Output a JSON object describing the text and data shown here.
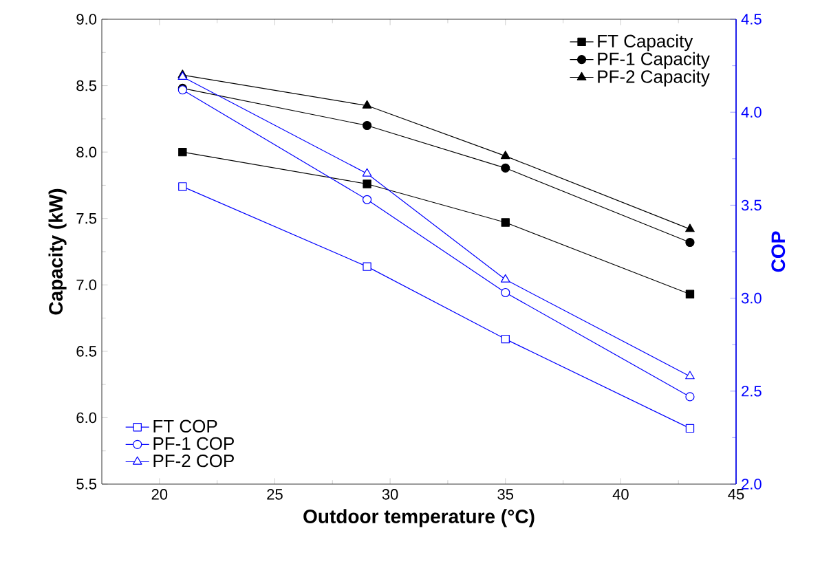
{
  "chart_data": {
    "type": "line",
    "xlabel": "Outdoor  temperature (°C)",
    "ylabel": "Capacity (kW)",
    "y2label": "COP",
    "x": [
      21,
      29,
      35,
      43
    ],
    "xlim": [
      17.5,
      45
    ],
    "xticks": [
      20,
      25,
      30,
      35,
      40,
      45
    ],
    "ylim": [
      5.5,
      9.0
    ],
    "yticks": [
      {
        "value": 5.5,
        "label": "5.5"
      },
      {
        "value": 6.0,
        "label": "6.0"
      },
      {
        "value": 6.5,
        "label": "6.5"
      },
      {
        "value": 7.0,
        "label": "7.0"
      },
      {
        "value": 7.5,
        "label": "7.5"
      },
      {
        "value": 8.0,
        "label": "8.0"
      },
      {
        "value": 8.5,
        "label": "8.5"
      },
      {
        "value": 9.0,
        "label": "9.0"
      }
    ],
    "y2lim": [
      2.0,
      4.5
    ],
    "y2ticks": [
      {
        "value": 2.0,
        "label": "2.0"
      },
      {
        "value": 2.5,
        "label": "2.5"
      },
      {
        "value": 3.0,
        "label": "3.0"
      },
      {
        "value": 3.5,
        "label": "3.5"
      },
      {
        "value": 4.0,
        "label": "4.0"
      },
      {
        "value": 4.5,
        "label": "4.5"
      }
    ],
    "legend": "top right",
    "grid": false,
    "line_style": "solid",
    "series": [
      {
        "name": "FT    Capacity",
        "color": "#000000",
        "marker": "square",
        "values": [
          8.0,
          7.76,
          7.47,
          6.93
        ]
      },
      {
        "name": "PF-1 Capacity",
        "color": "#000000",
        "marker": "circle",
        "values": [
          8.48,
          8.2,
          7.88,
          7.32
        ]
      },
      {
        "name": "PF-2 Capacity",
        "color": "#000000",
        "marker": "triangle",
        "values": [
          8.58,
          8.35,
          7.97,
          7.42
        ]
      },
      {
        "name": "FT    COP",
        "color": "#0000ff",
        "marker": "square",
        "axis": "y2",
        "values": [
          3.6,
          3.17,
          2.78,
          2.3
        ]
      },
      {
        "name": "PF-1 COP",
        "color": "#0000ff",
        "marker": "circle",
        "axis": "y2",
        "values": [
          4.12,
          3.53,
          3.03,
          2.47
        ]
      },
      {
        "name": "PF-2 COP",
        "color": "#0000ff",
        "marker": "triangle",
        "axis": "y2",
        "values": [
          4.19,
          3.67,
          3.1,
          2.58
        ]
      }
    ]
  }
}
